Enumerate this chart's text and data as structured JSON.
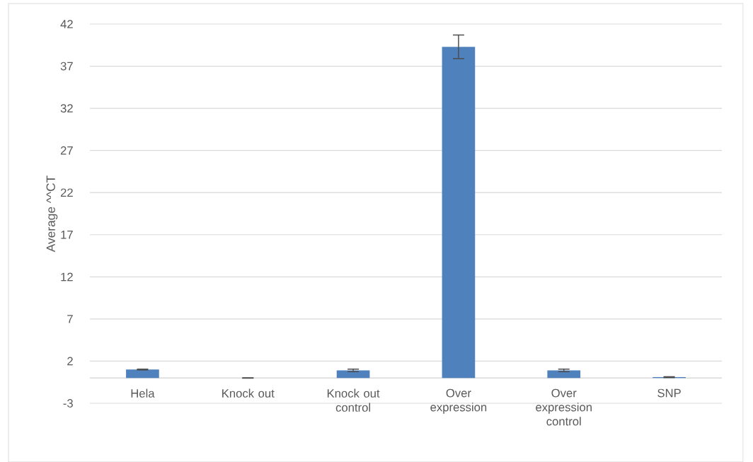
{
  "chart_data": {
    "type": "bar",
    "ylabel": "Average ^^CT",
    "categories": [
      "Hela",
      "Knock out",
      "Knock out control",
      "Over expression",
      "Over expression control",
      "SNP"
    ],
    "values": [
      1.0,
      0.0,
      0.9,
      39.3,
      0.9,
      0.1
    ],
    "errors": [
      0.05,
      0.02,
      0.15,
      1.4,
      0.15,
      0.05
    ],
    "color": "#4f81bd",
    "ylim": [
      -3,
      42
    ],
    "yticks": [
      -3,
      2,
      7,
      12,
      17,
      22,
      27,
      32,
      37,
      42
    ],
    "grid": "y"
  }
}
